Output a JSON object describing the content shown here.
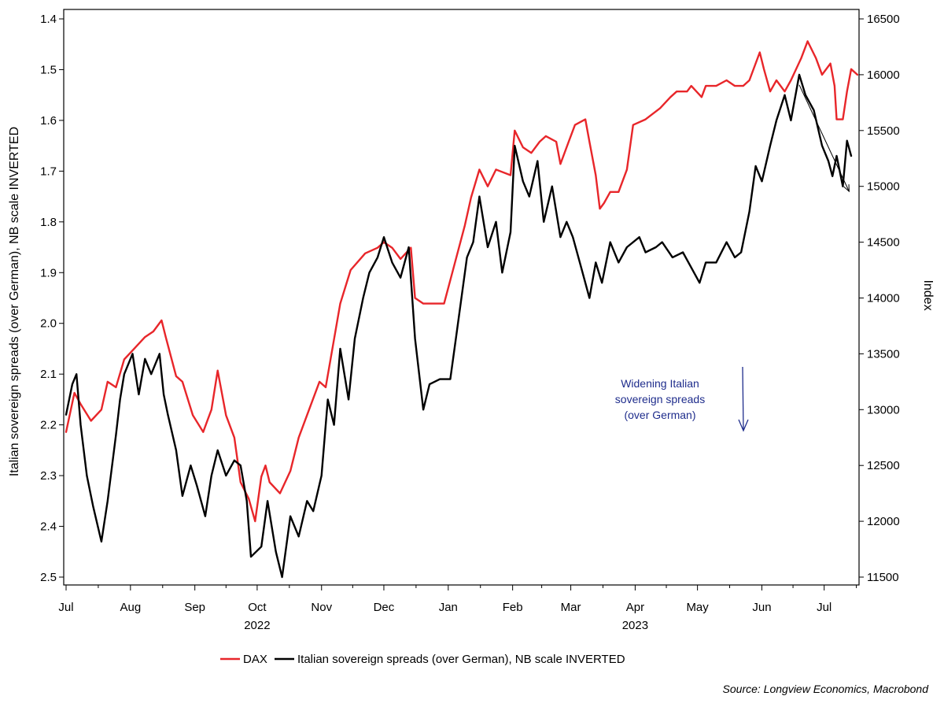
{
  "chart_data": {
    "type": "line",
    "title": "",
    "left_axis": {
      "label": "Italian sovereign spreads (over German), NB scale INVERTED",
      "range": [
        1.4,
        2.5
      ],
      "inverted": true,
      "ticks": [
        "1.4",
        "1.5",
        "1.6",
        "1.7",
        "1.8",
        "1.9",
        "2.0",
        "2.1",
        "2.2",
        "2.3",
        "2.4",
        "2.5"
      ]
    },
    "right_axis": {
      "label": "Index",
      "range": [
        11500,
        16500
      ],
      "ticks": [
        "16500",
        "16000",
        "15500",
        "15000",
        "14500",
        "14000",
        "13500",
        "13000",
        "12500",
        "12000",
        "11500"
      ]
    },
    "x_axis": {
      "months": [
        "Jul",
        "Aug",
        "Sep",
        "Oct",
        "Nov",
        "Dec",
        "Jan",
        "Feb",
        "Mar",
        "Apr",
        "May",
        "Jun",
        "Jul"
      ],
      "years": [
        {
          "label": "2022",
          "under_month": 3
        },
        {
          "label": "2023",
          "under_month": 9
        }
      ],
      "range": [
        "2022-07-01",
        "2023-07-14"
      ]
    },
    "grid": false,
    "legend_position": "bottom",
    "series": [
      {
        "name": "DAX",
        "axis": "right",
        "color": "#e8262a",
        "points": [
          [
            "2022-07-01",
            12800
          ],
          [
            "2022-07-05",
            13150
          ],
          [
            "2022-07-08",
            13050
          ],
          [
            "2022-07-13",
            12900
          ],
          [
            "2022-07-18",
            13000
          ],
          [
            "2022-07-21",
            13250
          ],
          [
            "2022-07-25",
            13200
          ],
          [
            "2022-07-29",
            13450
          ],
          [
            "2022-08-03",
            13550
          ],
          [
            "2022-08-08",
            13650
          ],
          [
            "2022-08-12",
            13700
          ],
          [
            "2022-08-16",
            13800
          ],
          [
            "2022-08-18",
            13650
          ],
          [
            "2022-08-23",
            13300
          ],
          [
            "2022-08-26",
            13250
          ],
          [
            "2022-08-31",
            12950
          ],
          [
            "2022-09-05",
            12800
          ],
          [
            "2022-09-07",
            12900
          ],
          [
            "2022-09-09",
            13000
          ],
          [
            "2022-09-12",
            13350
          ],
          [
            "2022-09-16",
            12950
          ],
          [
            "2022-09-20",
            12750
          ],
          [
            "2022-09-23",
            12350
          ],
          [
            "2022-09-27",
            12200
          ],
          [
            "2022-09-30",
            12000
          ],
          [
            "2022-10-03",
            12400
          ],
          [
            "2022-10-05",
            12500
          ],
          [
            "2022-10-07",
            12350
          ],
          [
            "2022-10-12",
            12250
          ],
          [
            "2022-10-17",
            12450
          ],
          [
            "2022-10-21",
            12750
          ],
          [
            "2022-10-26",
            13000
          ],
          [
            "2022-10-31",
            13250
          ],
          [
            "2022-11-03",
            13200
          ],
          [
            "2022-11-10",
            13950
          ],
          [
            "2022-11-15",
            14250
          ],
          [
            "2022-11-22",
            14400
          ],
          [
            "2022-11-28",
            14450
          ],
          [
            "2022-12-01",
            14500
          ],
          [
            "2022-12-05",
            14450
          ],
          [
            "2022-12-09",
            14350
          ],
          [
            "2022-12-14",
            14450
          ],
          [
            "2022-12-16",
            14000
          ],
          [
            "2022-12-20",
            13950
          ],
          [
            "2022-12-23",
            13950
          ],
          [
            "2022-12-28",
            13950
          ],
          [
            "2022-12-30",
            13950
          ],
          [
            "2023-01-04",
            14300
          ],
          [
            "2023-01-09",
            14650
          ],
          [
            "2023-01-12",
            14900
          ],
          [
            "2023-01-16",
            15150
          ],
          [
            "2023-01-20",
            15000
          ],
          [
            "2023-01-24",
            15150
          ],
          [
            "2023-01-31",
            15100
          ],
          [
            "2023-02-02",
            15500
          ],
          [
            "2023-02-06",
            15350
          ],
          [
            "2023-02-10",
            15300
          ],
          [
            "2023-02-14",
            15400
          ],
          [
            "2023-02-17",
            15450
          ],
          [
            "2023-02-22",
            15400
          ],
          [
            "2023-02-24",
            15200
          ],
          [
            "2023-02-28",
            15400
          ],
          [
            "2023-03-03",
            15550
          ],
          [
            "2023-03-08",
            15600
          ],
          [
            "2023-03-10",
            15400
          ],
          [
            "2023-03-13",
            15100
          ],
          [
            "2023-03-15",
            14800
          ],
          [
            "2023-03-17",
            14850
          ],
          [
            "2023-03-20",
            14950
          ],
          [
            "2023-03-24",
            14950
          ],
          [
            "2023-03-28",
            15150
          ],
          [
            "2023-03-31",
            15550
          ],
          [
            "2023-04-06",
            15600
          ],
          [
            "2023-04-13",
            15700
          ],
          [
            "2023-04-18",
            15800
          ],
          [
            "2023-04-21",
            15850
          ],
          [
            "2023-04-26",
            15850
          ],
          [
            "2023-04-28",
            15900
          ],
          [
            "2023-05-03",
            15800
          ],
          [
            "2023-05-05",
            15900
          ],
          [
            "2023-05-10",
            15900
          ],
          [
            "2023-05-15",
            15950
          ],
          [
            "2023-05-19",
            15900
          ],
          [
            "2023-05-23",
            15900
          ],
          [
            "2023-05-26",
            15950
          ],
          [
            "2023-05-31",
            16200
          ],
          [
            "2023-06-02",
            16050
          ],
          [
            "2023-06-05",
            15850
          ],
          [
            "2023-06-08",
            15950
          ],
          [
            "2023-06-12",
            15850
          ],
          [
            "2023-06-15",
            15950
          ],
          [
            "2023-06-20",
            16150
          ],
          [
            "2023-06-23",
            16300
          ],
          [
            "2023-06-27",
            16150
          ],
          [
            "2023-06-30",
            16000
          ],
          [
            "2023-07-04",
            16100
          ],
          [
            "2023-07-06",
            15900
          ],
          [
            "2023-07-07",
            15600
          ],
          [
            "2023-07-10",
            15600
          ],
          [
            "2023-07-12",
            15850
          ],
          [
            "2023-07-14",
            16050
          ],
          [
            "2023-07-17",
            16000
          ]
        ]
      },
      {
        "name": "Italian sovereign spreads (over German), NB scale INVERTED",
        "axis": "left",
        "color": "#000000",
        "points": [
          [
            "2022-07-01",
            2.18
          ],
          [
            "2022-07-04",
            2.12
          ],
          [
            "2022-07-06",
            2.1
          ],
          [
            "2022-07-08",
            2.2
          ],
          [
            "2022-07-11",
            2.3
          ],
          [
            "2022-07-14",
            2.36
          ],
          [
            "2022-07-18",
            2.43
          ],
          [
            "2022-07-21",
            2.35
          ],
          [
            "2022-07-25",
            2.22
          ],
          [
            "2022-07-27",
            2.15
          ],
          [
            "2022-07-29",
            2.1
          ],
          [
            "2022-08-02",
            2.06
          ],
          [
            "2022-08-05",
            2.14
          ],
          [
            "2022-08-08",
            2.07
          ],
          [
            "2022-08-11",
            2.1
          ],
          [
            "2022-08-15",
            2.06
          ],
          [
            "2022-08-17",
            2.14
          ],
          [
            "2022-08-19",
            2.18
          ],
          [
            "2022-08-23",
            2.25
          ],
          [
            "2022-08-26",
            2.34
          ],
          [
            "2022-08-30",
            2.28
          ],
          [
            "2022-09-02",
            2.32
          ],
          [
            "2022-09-06",
            2.38
          ],
          [
            "2022-09-09",
            2.3
          ],
          [
            "2022-09-12",
            2.25
          ],
          [
            "2022-09-16",
            2.3
          ],
          [
            "2022-09-20",
            2.27
          ],
          [
            "2022-09-23",
            2.28
          ],
          [
            "2022-09-26",
            2.35
          ],
          [
            "2022-09-28",
            2.46
          ],
          [
            "2022-10-03",
            2.44
          ],
          [
            "2022-10-06",
            2.35
          ],
          [
            "2022-10-10",
            2.45
          ],
          [
            "2022-10-13",
            2.5
          ],
          [
            "2022-10-17",
            2.38
          ],
          [
            "2022-10-21",
            2.42
          ],
          [
            "2022-10-25",
            2.35
          ],
          [
            "2022-10-28",
            2.37
          ],
          [
            "2022-11-01",
            2.3
          ],
          [
            "2022-11-04",
            2.15
          ],
          [
            "2022-11-07",
            2.2
          ],
          [
            "2022-11-10",
            2.05
          ],
          [
            "2022-11-14",
            2.15
          ],
          [
            "2022-11-17",
            2.03
          ],
          [
            "2022-11-21",
            1.95
          ],
          [
            "2022-11-24",
            1.9
          ],
          [
            "2022-11-28",
            1.87
          ],
          [
            "2022-12-01",
            1.83
          ],
          [
            "2022-12-05",
            1.88
          ],
          [
            "2022-12-09",
            1.91
          ],
          [
            "2022-12-13",
            1.85
          ],
          [
            "2022-12-16",
            2.03
          ],
          [
            "2022-12-20",
            2.17
          ],
          [
            "2022-12-23",
            2.12
          ],
          [
            "2022-12-28",
            2.11
          ],
          [
            "2023-01-02",
            2.11
          ],
          [
            "2023-01-05",
            2.02
          ],
          [
            "2023-01-10",
            1.87
          ],
          [
            "2023-01-13",
            1.84
          ],
          [
            "2023-01-16",
            1.75
          ],
          [
            "2023-01-20",
            1.85
          ],
          [
            "2023-01-24",
            1.8
          ],
          [
            "2023-01-27",
            1.9
          ],
          [
            "2023-01-31",
            1.82
          ],
          [
            "2023-02-02",
            1.65
          ],
          [
            "2023-02-06",
            1.72
          ],
          [
            "2023-02-09",
            1.75
          ],
          [
            "2023-02-13",
            1.68
          ],
          [
            "2023-02-16",
            1.8
          ],
          [
            "2023-02-20",
            1.73
          ],
          [
            "2023-02-24",
            1.83
          ],
          [
            "2023-02-27",
            1.8
          ],
          [
            "2023-03-02",
            1.83
          ],
          [
            "2023-03-06",
            1.89
          ],
          [
            "2023-03-10",
            1.95
          ],
          [
            "2023-03-13",
            1.88
          ],
          [
            "2023-03-16",
            1.92
          ],
          [
            "2023-03-20",
            1.84
          ],
          [
            "2023-03-24",
            1.88
          ],
          [
            "2023-03-28",
            1.85
          ],
          [
            "2023-04-03",
            1.83
          ],
          [
            "2023-04-06",
            1.86
          ],
          [
            "2023-04-11",
            1.85
          ],
          [
            "2023-04-14",
            1.84
          ],
          [
            "2023-04-19",
            1.87
          ],
          [
            "2023-04-24",
            1.86
          ],
          [
            "2023-04-28",
            1.89
          ],
          [
            "2023-05-02",
            1.92
          ],
          [
            "2023-05-05",
            1.88
          ],
          [
            "2023-05-10",
            1.88
          ],
          [
            "2023-05-15",
            1.84
          ],
          [
            "2023-05-19",
            1.87
          ],
          [
            "2023-05-22",
            1.86
          ],
          [
            "2023-05-26",
            1.78
          ],
          [
            "2023-05-29",
            1.69
          ],
          [
            "2023-06-01",
            1.72
          ],
          [
            "2023-06-05",
            1.65
          ],
          [
            "2023-06-08",
            1.6
          ],
          [
            "2023-06-12",
            1.55
          ],
          [
            "2023-06-15",
            1.6
          ],
          [
            "2023-06-19",
            1.51
          ],
          [
            "2023-06-22",
            1.55
          ],
          [
            "2023-06-26",
            1.58
          ],
          [
            "2023-06-30",
            1.65
          ],
          [
            "2023-07-03",
            1.68
          ],
          [
            "2023-07-05",
            1.71
          ],
          [
            "2023-07-07",
            1.67
          ],
          [
            "2023-07-10",
            1.73
          ],
          [
            "2023-07-12",
            1.64
          ],
          [
            "2023-07-14",
            1.67
          ]
        ]
      }
    ],
    "annotation": {
      "text_lines": [
        "Widening Italian",
        "sovereign spreads",
        "(over German)"
      ],
      "color": "#1f2d8c"
    },
    "trend_arrow": {
      "from": [
        "2023-06-19",
        1.53
      ],
      "to": [
        "2023-07-13",
        1.74
      ]
    },
    "source": "Source: Longview Economics, Macrobond"
  }
}
